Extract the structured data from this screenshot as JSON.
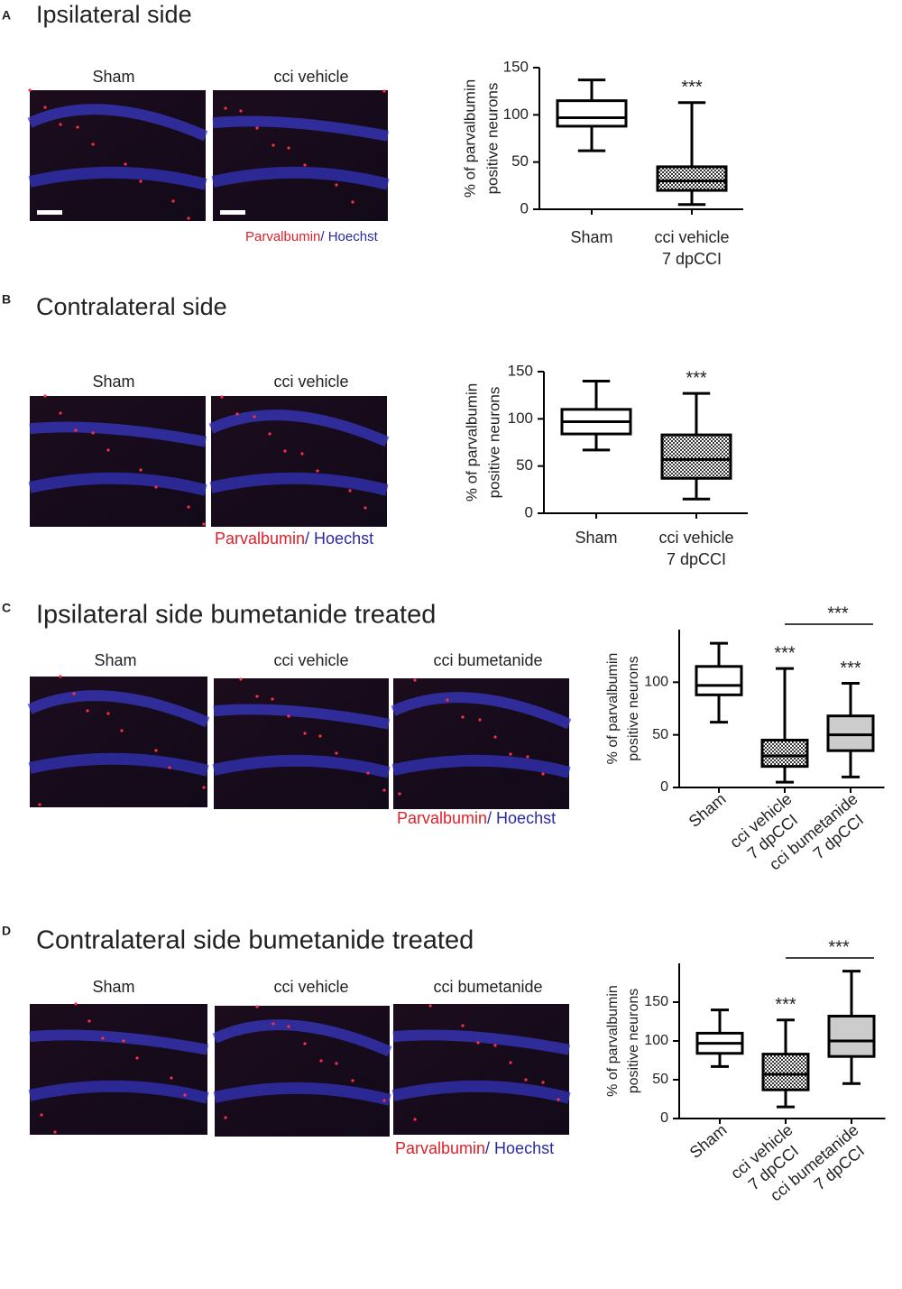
{
  "panels": [
    {
      "letter": "A",
      "title": "Ipsilateral side",
      "image_labels": [
        "Sham",
        "cci vehicle"
      ],
      "legend": [
        "Parvalbumin",
        "/ Hoechst"
      ]
    },
    {
      "letter": "B",
      "title": "Contralateral side",
      "image_labels": [
        "Sham",
        "cci vehicle"
      ],
      "legend": [
        "Parvalbumin",
        "/ Hoechst"
      ]
    },
    {
      "letter": "C",
      "title": "Ipsilateral side bumetanide treated",
      "image_labels": [
        "Sham",
        "cci vehicle",
        "cci bumetanide"
      ],
      "legend": [
        "Parvalbumin",
        "/ Hoechst"
      ]
    },
    {
      "letter": "D",
      "title": "Contralateral side bumetanide treated",
      "image_labels": [
        "Sham",
        "cci vehicle",
        "cci bumetanide"
      ],
      "legend": [
        "Parvalbumin",
        "/ Hoechst"
      ]
    }
  ],
  "chart_data": [
    {
      "type": "box",
      "ylabel": [
        "% of parvalbumin",
        "positive neurons"
      ],
      "categories": [
        [
          "Sham"
        ],
        [
          "cci vehicle",
          "7 dpCCI"
        ]
      ],
      "boxes": [
        {
          "min": 62,
          "q1": 88,
          "median": 97,
          "q3": 115,
          "max": 137,
          "fill": "#ffffff"
        },
        {
          "min": 5,
          "q1": 20,
          "median": 30,
          "q3": 45,
          "max": 113,
          "fill": "#ffffff",
          "pattern": "checker"
        }
      ],
      "stars": [
        null,
        "***"
      ],
      "ylim": [
        0,
        150
      ],
      "yticks": [
        0,
        50,
        100,
        150
      ]
    },
    {
      "type": "box",
      "ylabel": [
        "% of parvalbumin",
        "positive neurons"
      ],
      "categories": [
        [
          "Sham"
        ],
        [
          "cci vehicle",
          "7 dpCCI"
        ]
      ],
      "boxes": [
        {
          "min": 67,
          "q1": 84,
          "median": 97,
          "q3": 110,
          "max": 140,
          "fill": "#ffffff"
        },
        {
          "min": 15,
          "q1": 37,
          "median": 57,
          "q3": 83,
          "max": 127,
          "fill": "#ffffff",
          "pattern": "checker"
        }
      ],
      "stars": [
        null,
        "***"
      ],
      "ylim": [
        0,
        150
      ],
      "yticks": [
        0,
        50,
        100,
        150
      ]
    },
    {
      "type": "box",
      "ylabel": [
        "% of parvalbumin",
        "positive neurons"
      ],
      "categories": [
        [
          "Sham"
        ],
        [
          "cci vehicle",
          "7 dpCCI"
        ],
        [
          "cci bumetanide",
          "7 dpCCI"
        ]
      ],
      "boxes": [
        {
          "min": 62,
          "q1": 88,
          "median": 97,
          "q3": 115,
          "max": 137,
          "fill": "#ffffff"
        },
        {
          "min": 5,
          "q1": 20,
          "median": 30,
          "q3": 45,
          "max": 113,
          "fill": "#ffffff",
          "pattern": "checker"
        },
        {
          "min": 10,
          "q1": 35,
          "median": 50,
          "q3": 68,
          "max": 99,
          "fill": "#cccccc"
        }
      ],
      "stars": [
        null,
        "***",
        "***"
      ],
      "bracket": {
        "between": [
          1,
          2
        ],
        "label": "***"
      },
      "ylim": [
        0,
        150
      ],
      "yticks": [
        0,
        50,
        100
      ]
    },
    {
      "type": "box",
      "ylabel": [
        "% of parvalbumin",
        "positive neurons"
      ],
      "categories": [
        [
          "Sham"
        ],
        [
          "cci vehicle",
          "7 dpCCI"
        ],
        [
          "cci bumetanide",
          "7 dpCCI"
        ]
      ],
      "boxes": [
        {
          "min": 67,
          "q1": 84,
          "median": 97,
          "q3": 110,
          "max": 140,
          "fill": "#ffffff"
        },
        {
          "min": 15,
          "q1": 37,
          "median": 57,
          "q3": 83,
          "max": 127,
          "fill": "#ffffff",
          "pattern": "checker"
        },
        {
          "min": 45,
          "q1": 80,
          "median": 100,
          "q3": 132,
          "max": 190,
          "fill": "#cccccc"
        }
      ],
      "stars": [
        null,
        "***",
        null
      ],
      "bracket": {
        "between": [
          1,
          2
        ],
        "label": "***"
      },
      "ylim": [
        0,
        200
      ],
      "yticks": [
        0,
        50,
        100,
        150
      ]
    }
  ]
}
